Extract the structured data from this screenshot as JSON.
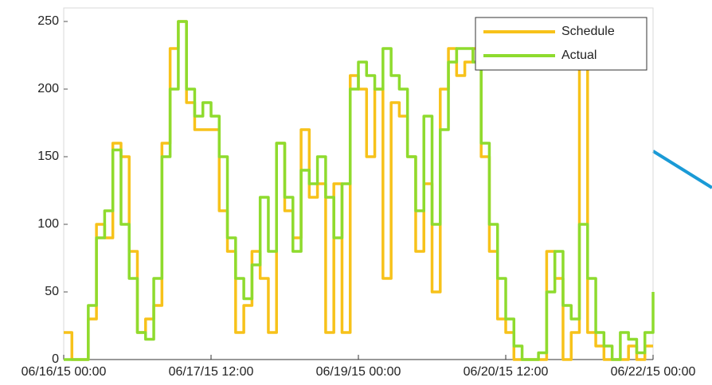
{
  "chart_data": {
    "type": "line",
    "x": [
      "2015-06-16T00:00",
      "2015-06-16T02:00",
      "2015-06-16T04:00",
      "2015-06-16T06:00",
      "2015-06-16T08:00",
      "2015-06-16T10:00",
      "2015-06-16T12:00",
      "2015-06-16T14:00",
      "2015-06-16T16:00",
      "2015-06-16T18:00",
      "2015-06-16T20:00",
      "2015-06-16T22:00",
      "2015-06-17T00:00",
      "2015-06-17T02:00",
      "2015-06-17T04:00",
      "2015-06-17T06:00",
      "2015-06-17T08:00",
      "2015-06-17T10:00",
      "2015-06-17T12:00",
      "2015-06-17T14:00",
      "2015-06-17T16:00",
      "2015-06-17T18:00",
      "2015-06-17T20:00",
      "2015-06-17T22:00",
      "2015-06-18T00:00",
      "2015-06-18T02:00",
      "2015-06-18T04:00",
      "2015-06-18T06:00",
      "2015-06-18T08:00",
      "2015-06-18T10:00",
      "2015-06-18T12:00",
      "2015-06-18T14:00",
      "2015-06-18T16:00",
      "2015-06-18T18:00",
      "2015-06-18T20:00",
      "2015-06-18T22:00",
      "2015-06-19T00:00",
      "2015-06-19T02:00",
      "2015-06-19T04:00",
      "2015-06-19T06:00",
      "2015-06-19T08:00",
      "2015-06-19T10:00",
      "2015-06-19T12:00",
      "2015-06-19T14:00",
      "2015-06-19T16:00",
      "2015-06-19T18:00",
      "2015-06-19T20:00",
      "2015-06-19T22:00",
      "2015-06-20T00:00",
      "2015-06-20T02:00",
      "2015-06-20T04:00",
      "2015-06-20T06:00",
      "2015-06-20T08:00",
      "2015-06-20T10:00",
      "2015-06-20T12:00",
      "2015-06-20T14:00",
      "2015-06-20T16:00",
      "2015-06-20T18:00",
      "2015-06-20T20:00",
      "2015-06-20T22:00",
      "2015-06-21T00:00",
      "2015-06-21T02:00",
      "2015-06-21T04:00",
      "2015-06-21T06:00",
      "2015-06-21T08:00",
      "2015-06-21T10:00",
      "2015-06-21T12:00",
      "2015-06-21T14:00",
      "2015-06-21T16:00",
      "2015-06-21T18:00",
      "2015-06-21T20:00",
      "2015-06-21T22:00",
      "2015-06-22T00:00"
    ],
    "series": [
      {
        "name": "Schedule",
        "color": "#f7c21a",
        "values": [
          20,
          0,
          0,
          30,
          100,
          90,
          160,
          150,
          80,
          20,
          30,
          40,
          160,
          230,
          250,
          190,
          170,
          170,
          170,
          110,
          80,
          20,
          40,
          80,
          60,
          20,
          160,
          110,
          90,
          170,
          120,
          130,
          20,
          130,
          20,
          210,
          200,
          150,
          200,
          60,
          190,
          180,
          150,
          80,
          130,
          50,
          200,
          230,
          210,
          220,
          230,
          150,
          80,
          30,
          20,
          0,
          0,
          0,
          0,
          80,
          60,
          0,
          20,
          220,
          20,
          10,
          0,
          0,
          0,
          10,
          0,
          10,
          10
        ]
      },
      {
        "name": "Actual",
        "color": "#8edb2e",
        "values": [
          0,
          0,
          0,
          40,
          90,
          110,
          155,
          100,
          60,
          20,
          15,
          60,
          150,
          200,
          250,
          200,
          180,
          190,
          180,
          150,
          90,
          60,
          45,
          70,
          120,
          80,
          160,
          120,
          80,
          140,
          130,
          150,
          120,
          90,
          130,
          200,
          220,
          210,
          200,
          230,
          210,
          200,
          150,
          110,
          180,
          100,
          170,
          220,
          230,
          230,
          220,
          160,
          100,
          60,
          30,
          10,
          0,
          0,
          5,
          50,
          80,
          40,
          30,
          100,
          60,
          20,
          10,
          0,
          20,
          15,
          5,
          20,
          50
        ]
      }
    ],
    "xlim": [
      "2015-06-16T00:00",
      "2015-06-22T00:00"
    ],
    "xticks": [
      {
        "value": "2015-06-16T00:00",
        "label": "06/16/15 00:00"
      },
      {
        "value": "2015-06-17T12:00",
        "label": "06/17/15 12:00"
      },
      {
        "value": "2015-06-19T00:00",
        "label": "06/19/15 00:00"
      },
      {
        "value": "2015-06-20T12:00",
        "label": "06/20/15 12:00"
      },
      {
        "value": "2015-06-22T00:00",
        "label": "06/22/15 00:00"
      }
    ],
    "ylim": [
      0,
      260
    ],
    "yticks": [
      0,
      50,
      100,
      150,
      200,
      250
    ],
    "legend": "upper right"
  }
}
